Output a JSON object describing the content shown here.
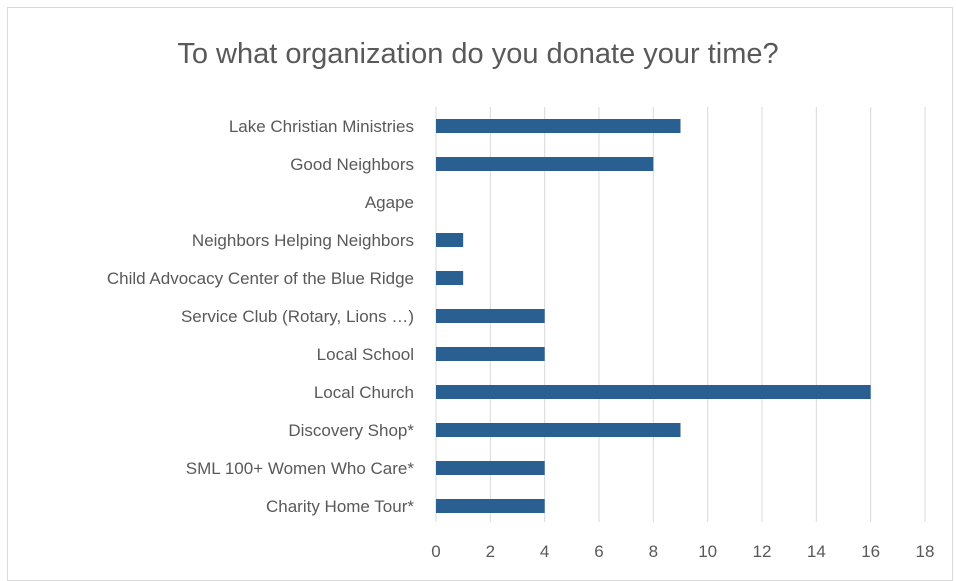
{
  "chart_data": {
    "type": "bar",
    "orientation": "horizontal",
    "title": "To what organization do you donate your time?",
    "xlabel": "",
    "ylabel": "",
    "categories": [
      "Lake Christian Ministries",
      "Good Neighbors",
      "Agape",
      "Neighbors Helping Neighbors",
      "Child Advocacy Center of the Blue Ridge",
      "Service Club (Rotary, Lions …)",
      "Local School",
      "Local Church",
      "Discovery Shop*",
      "SML 100+ Women Who Care*",
      "Charity Home Tour*"
    ],
    "values": [
      9,
      8,
      0,
      1,
      1,
      4,
      4,
      16,
      9,
      4,
      4
    ],
    "xlim": [
      0,
      18
    ],
    "xticks": [
      "0",
      "2",
      "4",
      "6",
      "8",
      "10",
      "12",
      "14",
      "16",
      "18"
    ],
    "grid": true,
    "legend": "none",
    "bar_color": "#2a5f91",
    "grid_color": "#d9d9d9"
  }
}
